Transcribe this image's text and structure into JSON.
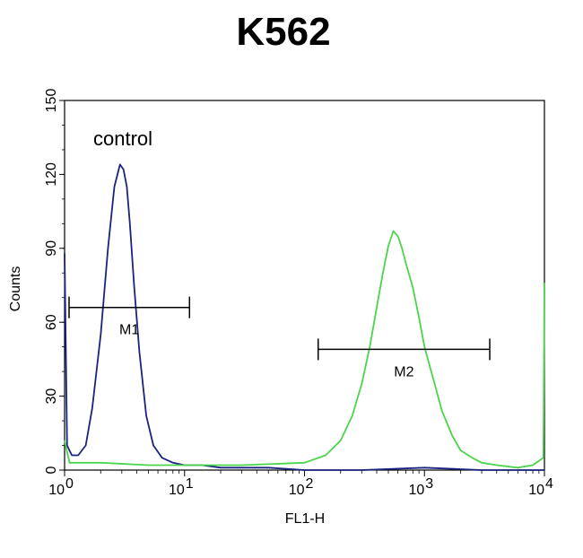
{
  "chart_data": {
    "type": "line",
    "title": "K562",
    "xlabel": "FL1-H",
    "ylabel": "Counts",
    "xscale": "log",
    "xlim": [
      1,
      10000
    ],
    "ylim": [
      0,
      150
    ],
    "x_ticks": [
      {
        "base": "10",
        "exp": "0"
      },
      {
        "base": "10",
        "exp": "1"
      },
      {
        "base": "10",
        "exp": "2"
      },
      {
        "base": "10",
        "exp": "3"
      },
      {
        "base": "10",
        "exp": "4"
      }
    ],
    "y_ticks": [
      "0",
      "30",
      "60",
      "90",
      "120",
      "150"
    ],
    "y_tick_values": [
      0,
      30,
      60,
      90,
      120,
      150
    ],
    "annotation": "control",
    "series": [
      {
        "color": "#1a237e",
        "x": [
          1,
          1.05,
          1.15,
          1.3,
          1.5,
          1.7,
          2.0,
          2.3,
          2.6,
          2.9,
          3.1,
          3.3,
          3.5,
          3.8,
          4.2,
          4.8,
          5.5,
          6.5,
          8,
          10,
          14,
          20,
          30,
          50,
          100,
          300,
          1000,
          3000,
          10000
        ],
        "y": [
          88,
          10,
          6,
          6,
          10,
          25,
          55,
          90,
          115,
          124,
          122,
          115,
          100,
          75,
          48,
          22,
          10,
          5,
          3,
          2,
          2,
          1,
          1,
          1,
          0,
          0,
          1,
          0,
          0
        ]
      },
      {
        "color": "#4cd44c",
        "x": [
          1,
          1.1,
          2,
          5,
          10,
          30,
          100,
          150,
          200,
          250,
          300,
          350,
          400,
          450,
          500,
          550,
          600,
          650,
          700,
          800,
          900,
          1000,
          1200,
          1400,
          1700,
          2000,
          2500,
          3000,
          4000,
          6000,
          8000,
          9800,
          10000
        ],
        "y": [
          12,
          3,
          3,
          2,
          2,
          2,
          3,
          6,
          12,
          22,
          35,
          50,
          66,
          80,
          91,
          97,
          95,
          90,
          84,
          74,
          62,
          50,
          36,
          24,
          14,
          8,
          5,
          3,
          2,
          1,
          2,
          5,
          76
        ]
      }
    ],
    "markers": [
      {
        "label": "M1",
        "x_start": 1.09,
        "x_end": 11,
        "y": 66
      },
      {
        "label": "M2",
        "x_start": 130,
        "x_end": 3500,
        "y": 49
      }
    ]
  }
}
